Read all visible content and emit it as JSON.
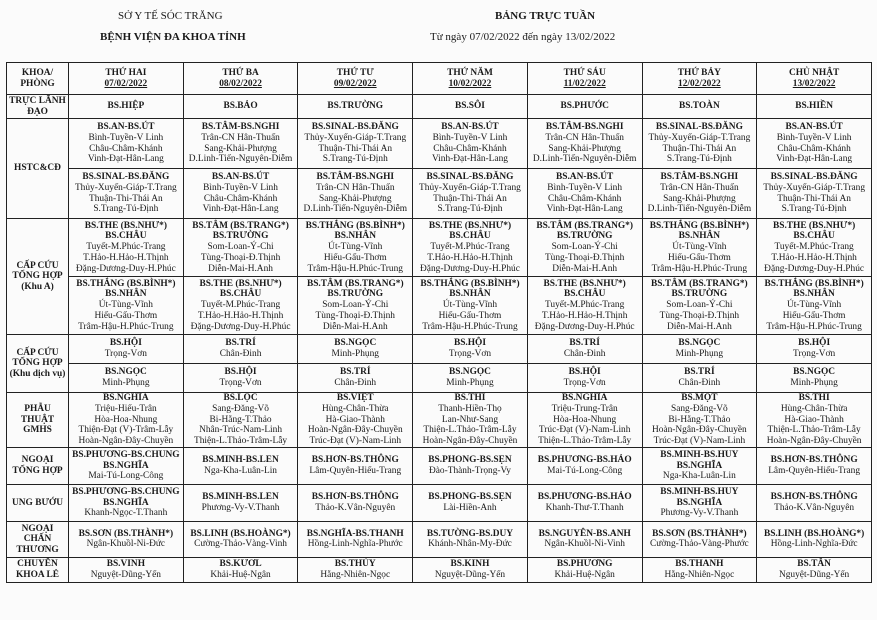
{
  "header": {
    "org": "SỞ Y TẾ SÓC TRĂNG",
    "hospital": "BỆNH VIỆN ĐA KHOA TỈNH",
    "title": "BẢNG TRỰC TUẦN",
    "subtitle": "Từ ngày 07/02/2022 đến ngày 13/02/2022"
  },
  "columns": [
    {
      "day": "KHOA/",
      "date": "PHÒNG"
    },
    {
      "day": "THỨ HAI",
      "date": "07/02/2022"
    },
    {
      "day": "THỨ BA",
      "date": "08/02/2022"
    },
    {
      "day": "THỨ TƯ",
      "date": "09/02/2022"
    },
    {
      "day": "THỨ NĂM",
      "date": "10/02/2022"
    },
    {
      "day": "THỨ SÁU",
      "date": "11/02/2022"
    },
    {
      "day": "THỨ BẢY",
      "date": "12/02/2022"
    },
    {
      "day": "CHỦ NHẬT",
      "date": "13/02/2022"
    }
  ],
  "rows": [
    {
      "dept": "TRỰC LÃNH ĐẠO",
      "subrows": [
        [
          {
            "b": [
              "BS.HIỆP"
            ],
            "l": []
          },
          {
            "b": [
              "BS.BẢO"
            ],
            "l": []
          },
          {
            "b": [
              "BS.TRƯỜNG"
            ],
            "l": []
          },
          {
            "b": [
              "BS.SÔI"
            ],
            "l": []
          },
          {
            "b": [
              "BS.PHƯỚC"
            ],
            "l": []
          },
          {
            "b": [
              "BS.TOÀN"
            ],
            "l": []
          },
          {
            "b": [
              "BS.HIỀN"
            ],
            "l": []
          }
        ]
      ]
    },
    {
      "dept": "HSTC&CĐ",
      "subrows": [
        [
          {
            "b": [
              "BS.AN-BS.ÚT"
            ],
            "l": [
              "Bình-Tuyền-V Linh",
              "Châu-Châm-Khánh",
              "Vinh-Đạt-Hân-Lang"
            ]
          },
          {
            "b": [
              "BS.TÂM-BS.NGHI"
            ],
            "l": [
              "Trân-CN Hân-Thuấn",
              "Sang-Khải-Phượng",
              "D.Linh-Tiến-Nguyên-Diễm"
            ]
          },
          {
            "b": [
              "BS.SINAL-BS.ĐĂNG"
            ],
            "l": [
              "Thủy-Xuyến-Giáp-T.Trang",
              "Thuận-Thi-Thái An",
              "S.Trang-Tú-Định"
            ]
          },
          {
            "b": [
              "BS.AN-BS.ÚT"
            ],
            "l": [
              "Bình-Tuyền-V Linh",
              "Châu-Châm-Khánh",
              "Vinh-Đạt-Hân-Lang"
            ]
          },
          {
            "b": [
              "BS.TÂM-BS.NGHI"
            ],
            "l": [
              "Trân-CN Hân-Thuấn",
              "Sang-Khải-Phượng",
              "D.Linh-Tiến-Nguyên-Diễm"
            ]
          },
          {
            "b": [
              "BS.SINAL-BS.ĐĂNG"
            ],
            "l": [
              "Thủy-Xuyến-Giáp-T.Trang",
              "Thuận-Thi-Thái An",
              "S.Trang-Tú-Định"
            ]
          },
          {
            "b": [
              "BS.AN-BS.ÚT"
            ],
            "l": [
              "Bình-Tuyền-V Linh",
              "Châu-Châm-Khánh",
              "Vinh-Đạt-Hân-Lang"
            ]
          }
        ],
        [
          {
            "b": [
              "BS.SINAL-BS.ĐĂNG"
            ],
            "l": [
              "Thủy-Xuyến-Giáp-T.Trang",
              "Thuận-Thi-Thái An",
              "S.Trang-Tú-Định"
            ]
          },
          {
            "b": [
              "BS.AN-BS.ÚT"
            ],
            "l": [
              "Bình-Tuyền-V Linh",
              "Châu-Châm-Khánh",
              "Vinh-Đạt-Hân-Lang"
            ]
          },
          {
            "b": [
              "BS.TÂM-BS.NGHI"
            ],
            "l": [
              "Trân-CN Hân-Thuấn",
              "Sang-Khải-Phượng",
              "D.Linh-Tiến-Nguyên-Diễm"
            ]
          },
          {
            "b": [
              "BS.SINAL-BS.ĐĂNG"
            ],
            "l": [
              "Thủy-Xuyến-Giáp-T.Trang",
              "Thuận-Thi-Thái An",
              "S.Trang-Tú-Định"
            ]
          },
          {
            "b": [
              "BS.AN-BS.ÚT"
            ],
            "l": [
              "Bình-Tuyền-V Linh",
              "Châu-Châm-Khánh",
              "Vinh-Đạt-Hân-Lang"
            ]
          },
          {
            "b": [
              "BS.TÂM-BS.NGHI"
            ],
            "l": [
              "Trân-CN Hân-Thuấn",
              "Sang-Khải-Phượng",
              "D.Linh-Tiến-Nguyên-Diễm"
            ]
          },
          {
            "b": [
              "BS.SINAL-BS.ĐĂNG"
            ],
            "l": [
              "Thủy-Xuyến-Giáp-T.Trang",
              "Thuận-Thi-Thái An",
              "S.Trang-Tú-Định"
            ]
          }
        ]
      ]
    },
    {
      "dept": "CẤP CỨU TỔNG HỢP (Khu A)",
      "subrows": [
        [
          {
            "b": [
              "BS.THE (BS.NHƯ*)",
              "BS.CHÂU"
            ],
            "l": [
              "Tuyết-M.Phúc-Trang",
              "T.Hảo-H.Hảo-H.Thịnh",
              "Đặng-Dương-Duy-H.Phúc"
            ]
          },
          {
            "b": [
              "BS.TÂM (BS.TRANG*)",
              "BS.TRƯỜNG"
            ],
            "l": [
              "Som-Loan-Ý-Chi",
              "Tùng-Thoại-Đ.Thịnh",
              "Diễn-Mai-H.Anh"
            ]
          },
          {
            "b": [
              "BS.THẮNG (BS.BÌNH*)",
              "BS.NHÂN"
            ],
            "l": [
              "Út-Tùng-Vĩnh",
              "Hiếu-Gấu-Thơm",
              "Trâm-Hậu-H.Phúc-Trung"
            ]
          },
          {
            "b": [
              "BS.THE (BS.NHƯ*)",
              "BS.CHÂU"
            ],
            "l": [
              "Tuyết-M.Phúc-Trang",
              "T.Hảo-H.Hảo-H.Thịnh",
              "Đặng-Dương-Duy-H.Phúc"
            ]
          },
          {
            "b": [
              "BS.TÂM (BS.TRANG*)",
              "BS.TRƯỜNG"
            ],
            "l": [
              "Som-Loan-Ý-Chi",
              "Tùng-Thoại-Đ.Thịnh",
              "Diễn-Mai-H.Anh"
            ]
          },
          {
            "b": [
              "BS.THẮNG (BS.BÌNH*)",
              "BS.NHÂN"
            ],
            "l": [
              "Út-Tùng-Vĩnh",
              "Hiếu-Gấu-Thơm",
              "Trâm-Hậu-H.Phúc-Trung"
            ]
          },
          {
            "b": [
              "BS.THE (BS.NHƯ*)",
              "BS.CHÂU"
            ],
            "l": [
              "Tuyết-M.Phúc-Trang",
              "T.Hảo-H.Hảo-H.Thịnh",
              "Đặng-Dương-Duy-H.Phúc"
            ]
          }
        ],
        [
          {
            "b": [
              "BS.THẮNG (BS.BÌNH*)",
              "BS.NHÂN"
            ],
            "l": [
              "Út-Tùng-Vĩnh",
              "Hiếu-Gấu-Thơm",
              "Trâm-Hậu-H.Phúc-Trung"
            ]
          },
          {
            "b": [
              "BS.THE (BS.NHƯ*)",
              "BS.CHÂU"
            ],
            "l": [
              "Tuyết-M.Phúc-Trang",
              "T.Hảo-H.Hảo-H.Thịnh",
              "Đặng-Dương-Duy-H.Phúc"
            ]
          },
          {
            "b": [
              "BS.TÂM (BS.TRANG*)",
              "BS.TRƯỜNG"
            ],
            "l": [
              "Som-Loan-Ý-Chi",
              "Tùng-Thoại-Đ.Thịnh",
              "Diễn-Mai-H.Anh"
            ]
          },
          {
            "b": [
              "BS.THẮNG (BS.BÌNH*)",
              "BS.NHÂN"
            ],
            "l": [
              "Út-Tùng-Vĩnh",
              "Hiếu-Gấu-Thơm",
              "Trâm-Hậu-H.Phúc-Trung"
            ]
          },
          {
            "b": [
              "BS.THE (BS.NHƯ*)",
              "BS.CHÂU"
            ],
            "l": [
              "Tuyết-M.Phúc-Trang",
              "T.Hảo-H.Hảo-H.Thịnh",
              "Đặng-Dương-Duy-H.Phúc"
            ]
          },
          {
            "b": [
              "BS.TÂM (BS.TRANG*)",
              "BS.TRƯỜNG"
            ],
            "l": [
              "Som-Loan-Ý-Chi",
              "Tùng-Thoại-Đ.Thịnh",
              "Diễn-Mai-H.Anh"
            ]
          },
          {
            "b": [
              "BS.THẮNG (BS.BÌNH*)",
              "BS.NHÂN"
            ],
            "l": [
              "Út-Tùng-Vĩnh",
              "Hiếu-Gấu-Thơm",
              "Trâm-Hậu-H.Phúc-Trung"
            ]
          }
        ]
      ]
    },
    {
      "dept": "CẤP CỨU TỔNG HỢP (Khu dịch vụ)",
      "subrows": [
        [
          {
            "b": [
              "BS.HỘI"
            ],
            "l": [
              "Trọng-Vơn"
            ]
          },
          {
            "b": [
              "BS.TRÍ"
            ],
            "l": [
              "Chân-Đinh"
            ]
          },
          {
            "b": [
              "BS.NGỌC"
            ],
            "l": [
              "Minh-Phụng"
            ]
          },
          {
            "b": [
              "BS.HỘI"
            ],
            "l": [
              "Trọng-Vơn"
            ]
          },
          {
            "b": [
              "BS.TRÍ"
            ],
            "l": [
              "Chân-Đinh"
            ]
          },
          {
            "b": [
              "BS.NGỌC"
            ],
            "l": [
              "Minh-Phụng"
            ]
          },
          {
            "b": [
              "BS.HỘI"
            ],
            "l": [
              "Trọng-Vơn"
            ]
          }
        ],
        [
          {
            "b": [
              "BS.NGỌC"
            ],
            "l": [
              "Minh-Phụng"
            ]
          },
          {
            "b": [
              "BS.HỘI"
            ],
            "l": [
              "Trọng-Vơn"
            ]
          },
          {
            "b": [
              "BS.TRÍ"
            ],
            "l": [
              "Chân-Đinh"
            ]
          },
          {
            "b": [
              "BS.NGỌC"
            ],
            "l": [
              "Minh-Phụng"
            ]
          },
          {
            "b": [
              "BS.HỘI"
            ],
            "l": [
              "Trọng-Vơn"
            ]
          },
          {
            "b": [
              "BS.TRÍ"
            ],
            "l": [
              "Chân-Đinh"
            ]
          },
          {
            "b": [
              "BS.NGỌC"
            ],
            "l": [
              "Minh-Phụng"
            ]
          }
        ]
      ]
    },
    {
      "dept": "PHẪU THUẬT GMHS",
      "subrows": [
        [
          {
            "b": [
              "BS.NGHĨA"
            ],
            "l": [
              "Triệu-Hiếu-Trân",
              "Hòa-Hoa-Nhung",
              "Thiện-Đạt (V)-Trâm-Lẫy",
              "Hoàn-Ngân-Đây-Chuyền"
            ]
          },
          {
            "b": [
              "BS.LỘC"
            ],
            "l": [
              "Sang-Đăng-Võ",
              "Bi-Hằng-T.Thảo",
              "Nhân-Trúc-Nam-Linh",
              "Thiện-L.Thảo-Trâm-Lẫy"
            ]
          },
          {
            "b": [
              "BS.VIỆT"
            ],
            "l": [
              "Hùng-Chân-Thừa",
              "Hà-Giao-Thành",
              "Hoàn-Ngân-Đây-Chuyền",
              "Trúc-Đạt (V)-Nam-Linh"
            ]
          },
          {
            "b": [
              "BS.THI"
            ],
            "l": [
              "Thanh-Hiền-Thọ",
              "Lan-Như-Sang",
              "Thiện-L.Thảo-Trâm-Lẫy",
              "Hoàn-Ngân-Đây-Chuyền"
            ]
          },
          {
            "b": [
              "BS.NGHĨA"
            ],
            "l": [
              "Triệu-Trung-Trân",
              "Hòa-Hoa-Nhung",
              "Trúc-Đạt (V)-Nam-Linh",
              "Thiện-L.Thảo-Trâm-Lẫy"
            ]
          },
          {
            "b": [
              "BS.MỘT"
            ],
            "l": [
              "Sang-Đăng-Võ",
              "Bi-Hằng-T.Thảo",
              "Hoàn-Ngân-Đây-Chuyền",
              "Trúc-Đạt (V)-Nam-Linh"
            ]
          },
          {
            "b": [
              "BS.THI"
            ],
            "l": [
              "Hùng-Chân-Thừa",
              "Hà-Giao-Thành",
              "Thiện-L.Thảo-Trâm-Lẫy",
              "Hoàn-Ngân-Đây-Chuyền"
            ]
          }
        ]
      ]
    },
    {
      "dept": "NGOẠI TỔNG HỢP",
      "subrows": [
        [
          {
            "b": [
              "BS.PHƯƠNG-BS.CHUNG",
              "BS.NGHĨA"
            ],
            "l": [
              "Mai-Tú-Long-Công"
            ]
          },
          {
            "b": [
              "BS.MINH-BS.LEN"
            ],
            "l": [
              "Nga-Kha-Luân-Lin"
            ]
          },
          {
            "b": [
              "BS.HƠN-BS.THÔNG"
            ],
            "l": [
              "Lâm-Quyên-Hiếu-Trang"
            ]
          },
          {
            "b": [
              "BS.PHONG-BS.SẸN"
            ],
            "l": [
              "Đào-Thành-Trọng-Vy"
            ]
          },
          {
            "b": [
              "BS.PHƯƠNG-BS.HẢO"
            ],
            "l": [
              "Mai-Tú-Long-Công"
            ]
          },
          {
            "b": [
              "BS.MINH-BS.HUY",
              "BS.NGHĨA"
            ],
            "l": [
              "Nga-Kha-Luân-Lin"
            ]
          },
          {
            "b": [
              "BS.HƠN-BS.THÔNG"
            ],
            "l": [
              "Lâm-Quyên-Hiếu-Trang"
            ]
          }
        ]
      ]
    },
    {
      "dept": "UNG BƯỚU",
      "subrows": [
        [
          {
            "b": [
              "BS.PHƯƠNG-BS.CHUNG",
              "BS.NGHĨA"
            ],
            "l": [
              "Khanh-Ngọc-T.Thanh"
            ]
          },
          {
            "b": [
              "BS.MINH-BS.LEN"
            ],
            "l": [
              "Phương-Vy-V.Thanh"
            ]
          },
          {
            "b": [
              "BS.HƠN-BS.THÔNG"
            ],
            "l": [
              "Thảo-K.Vân-Nguyên"
            ]
          },
          {
            "b": [
              "BS.PHONG-BS.SẸN"
            ],
            "l": [
              "Lài-Hiền-Anh"
            ]
          },
          {
            "b": [
              "BS.PHƯƠNG-BS.HẢO"
            ],
            "l": [
              "Khanh-Thư-T.Thanh"
            ]
          },
          {
            "b": [
              "BS.MINH-BS.HUY",
              "BS.NGHĨA"
            ],
            "l": [
              "Phương-Vy-V.Thanh"
            ]
          },
          {
            "b": [
              "BS.HƠN-BS.THÔNG"
            ],
            "l": [
              "Thảo-K.Vân-Nguyên"
            ]
          }
        ]
      ]
    },
    {
      "dept": "NGOẠI CHẤN THƯƠNG",
      "subrows": [
        [
          {
            "b": [
              "BS.SƠN (BS.THÀNH*)"
            ],
            "l": [
              "Ngân-Khuồl-Ni-Đức"
            ]
          },
          {
            "b": [
              "BS.LINH (BS.HOÀNG*)"
            ],
            "l": [
              "Cường-Thảo-Vàng-Vinh"
            ]
          },
          {
            "b": [
              "BS.NGHĨA-BS.THANH"
            ],
            "l": [
              "Hồng-Linh-Nghĩa-Phước"
            ]
          },
          {
            "b": [
              "BS.TƯỜNG-BS.DUY"
            ],
            "l": [
              "Khánh-Nhân-My-Đức"
            ]
          },
          {
            "b": [
              "BS.NGUYÊN-BS.ANH"
            ],
            "l": [
              "Ngân-Khuồl-Ni-Vinh"
            ]
          },
          {
            "b": [
              "BS.SƠN (BS.THÀNH*)"
            ],
            "l": [
              "Cường-Thảo-Vàng-Phước"
            ]
          },
          {
            "b": [
              "BS.LINH (BS.HOÀNG*)"
            ],
            "l": [
              "Hồng-Linh-Nghĩa-Đức"
            ]
          }
        ]
      ]
    },
    {
      "dept": "CHUYÊN KHOA LẺ",
      "subrows": [
        [
          {
            "b": [
              "BS.VINH"
            ],
            "l": [
              "Nguyệt-Dũng-Yến"
            ]
          },
          {
            "b": [
              "BS.KƯƠL"
            ],
            "l": [
              "Khải-Huệ-Ngân"
            ]
          },
          {
            "b": [
              "BS.THỦY"
            ],
            "l": [
              "Hằng-Nhiên-Ngọc"
            ]
          },
          {
            "b": [
              "BS.KINH"
            ],
            "l": [
              "Nguyệt-Dũng-Yến"
            ]
          },
          {
            "b": [
              "BS.PHƯƠNG"
            ],
            "l": [
              "Khải-Huệ-Ngân"
            ]
          },
          {
            "b": [
              "BS.THANH"
            ],
            "l": [
              "Hằng-Nhiên-Ngọc"
            ]
          },
          {
            "b": [
              "BS.TÂN"
            ],
            "l": [
              "Nguyệt-Dũng-Yến"
            ]
          }
        ]
      ]
    }
  ]
}
